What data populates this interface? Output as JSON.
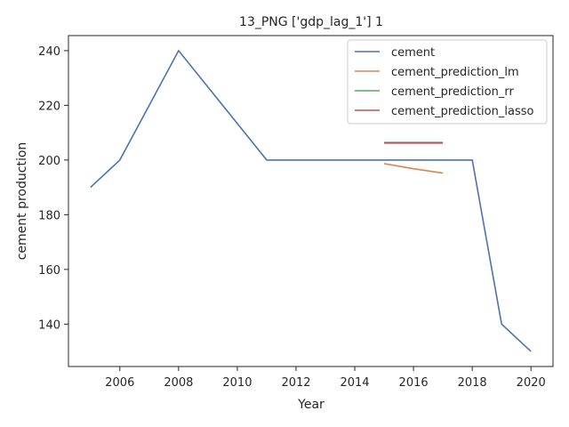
{
  "chart_data": {
    "type": "line",
    "title": "13_PNG ['gdp_lag_1'] 1",
    "xlabel": "Year",
    "ylabel": "cement production",
    "xlim": [
      2004.25,
      2020.75
    ],
    "ylim": [
      124.5,
      245.5
    ],
    "xticks": [
      2006,
      2008,
      2010,
      2012,
      2014,
      2016,
      2018,
      2020
    ],
    "yticks": [
      140,
      160,
      180,
      200,
      220,
      240
    ],
    "grid": false,
    "legend_position": "top-right",
    "series": [
      {
        "name": "cement",
        "color": "#4c72b0",
        "x": [
          2005,
          2006,
          2008,
          2011,
          2012,
          2013,
          2014,
          2015,
          2016,
          2017,
          2018,
          2019,
          2020
        ],
        "y": [
          190,
          200,
          240,
          200,
          200,
          200,
          200,
          200,
          200,
          200,
          200,
          140,
          130
        ]
      },
      {
        "name": "cement_prediction_lm",
        "color": "#dd8452",
        "x": [
          2015,
          2016,
          2017
        ],
        "y": [
          198.7,
          196.8,
          195.2
        ]
      },
      {
        "name": "cement_prediction_rr",
        "color": "#55a868",
        "x": [
          2015,
          2016,
          2017
        ],
        "y": [
          206.4,
          206.4,
          206.4
        ]
      },
      {
        "name": "cement_prediction_lasso",
        "color": "#c44e52",
        "x": [
          2015,
          2016,
          2017
        ],
        "y": [
          206.2,
          206.2,
          206.2
        ]
      }
    ]
  }
}
